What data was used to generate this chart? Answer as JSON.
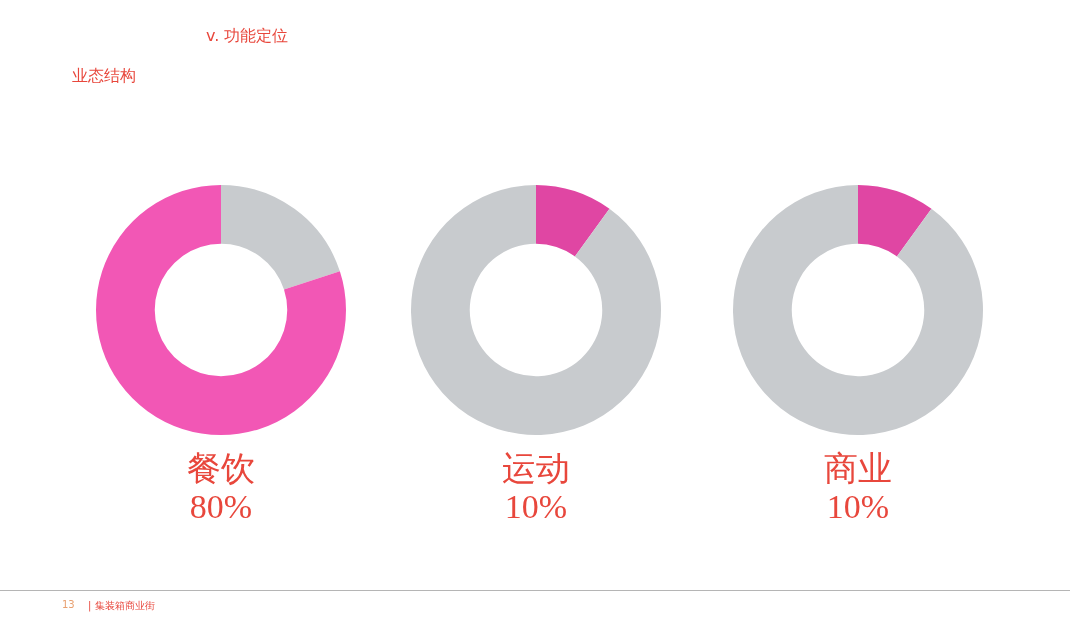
{
  "chart_data": [
    {
      "type": "donut",
      "title": "餐饮",
      "subtitle": "80%",
      "annotations": [
        "v. 功能定位",
        "业态结构",
        "13",
        "| 集装箱商业街"
      ],
      "categories": [
        null,
        null
      ],
      "values": [
        20,
        80
      ],
      "colors": [
        "#c8cbce",
        "#f257b5"
      ],
      "legend": false
    },
    {
      "type": "donut",
      "title": "运动",
      "subtitle": "10%",
      "categories": [
        null,
        null
      ],
      "values": [
        10,
        90
      ],
      "colors": [
        "#e046a3",
        "#c8cbce"
      ],
      "legend": false
    },
    {
      "type": "donut",
      "title": "商业",
      "subtitle": "10%",
      "categories": [
        null,
        null
      ],
      "values": [
        10,
        90
      ],
      "colors": [
        "#e046a3",
        "#c8cbce"
      ],
      "legend": false
    }
  ]
}
